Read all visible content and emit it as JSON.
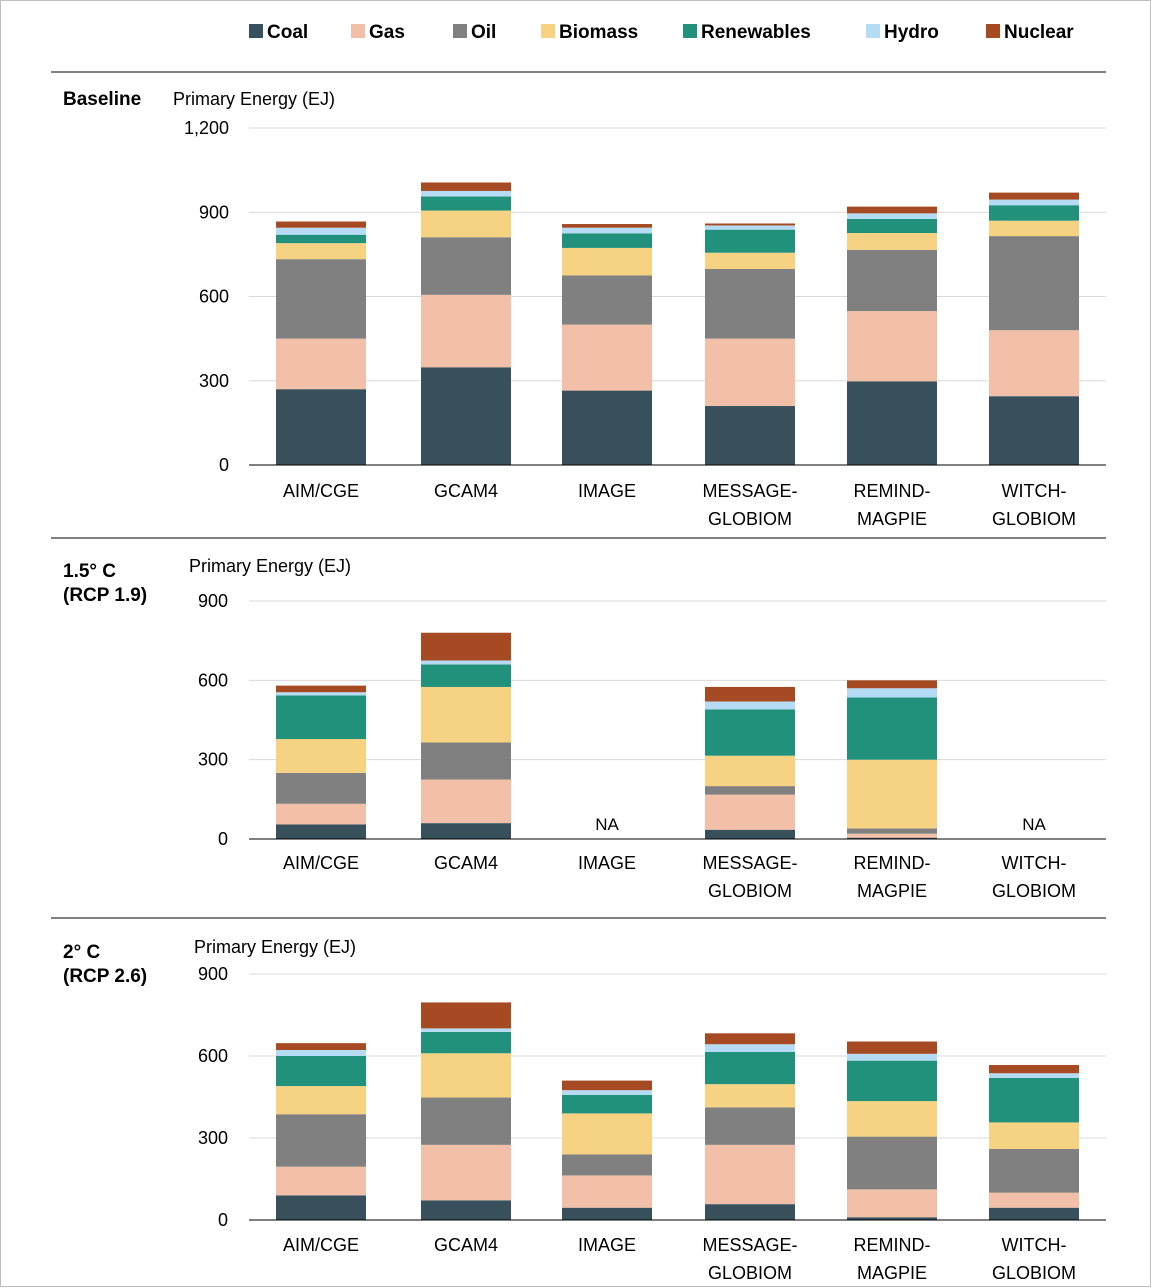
{
  "legend": [
    {
      "key": "coal",
      "label": "Coal",
      "color": "#37505c"
    },
    {
      "key": "gas",
      "label": "Gas",
      "color": "#f2bfa8"
    },
    {
      "key": "oil",
      "label": "Oil",
      "color": "#808080"
    },
    {
      "key": "biomass",
      "label": "Biomass",
      "color": "#f5d383"
    },
    {
      "key": "renewables",
      "label": "Renewables",
      "color": "#22917c"
    },
    {
      "key": "hydro",
      "label": "Hydro",
      "color": "#b6dcf5"
    },
    {
      "key": "nuclear",
      "label": "Nuclear",
      "color": "#a54a22"
    }
  ],
  "chart_data": [
    {
      "type": "bar",
      "stacked": true,
      "title": "Baseline",
      "ylabel": "Primary Energy (EJ)",
      "ylim": [
        0,
        1200
      ],
      "yticks": [
        "0",
        "300",
        "600",
        "900",
        "1,200"
      ],
      "grid": true,
      "legend_position": "top",
      "categories": [
        [
          "AIM/CGE"
        ],
        [
          "GCAM4"
        ],
        [
          "IMAGE"
        ],
        [
          "MESSAGE-",
          "GLOBIOM"
        ],
        [
          "REMIND-",
          "MAGPIE"
        ],
        [
          "WITCH-",
          "GLOBIOM"
        ]
      ],
      "na_labels": [
        "",
        "",
        "",
        "",
        "",
        ""
      ],
      "series": [
        {
          "name": "Coal",
          "values": [
            270,
            348,
            265,
            210,
            298,
            245
          ]
        },
        {
          "name": "Gas",
          "values": [
            180,
            258,
            235,
            240,
            250,
            235
          ]
        },
        {
          "name": "Oil",
          "values": [
            283,
            205,
            175,
            248,
            218,
            335
          ]
        },
        {
          "name": "Biomass",
          "values": [
            57,
            95,
            98,
            58,
            60,
            55
          ]
        },
        {
          "name": "Renewables",
          "values": [
            30,
            50,
            52,
            82,
            50,
            55
          ]
        },
        {
          "name": "Hydro",
          "values": [
            25,
            20,
            20,
            15,
            20,
            20
          ]
        },
        {
          "name": "Nuclear",
          "values": [
            22,
            30,
            13,
            7,
            24,
            25
          ]
        }
      ]
    },
    {
      "type": "bar",
      "stacked": true,
      "title": "1.5° C\n(RCP 1.9)",
      "ylabel": "Primary Energy (EJ)",
      "ylim": [
        0,
        900
      ],
      "yticks": [
        "0",
        "300",
        "600",
        "900"
      ],
      "grid": true,
      "categories": [
        [
          "AIM/CGE"
        ],
        [
          "GCAM4"
        ],
        [
          "IMAGE"
        ],
        [
          "MESSAGE-",
          "GLOBIOM"
        ],
        [
          "REMIND-",
          "MAGPIE"
        ],
        [
          "WITCH-",
          "GLOBIOM"
        ]
      ],
      "na_labels": [
        "",
        "",
        "NA",
        "",
        "",
        "NA"
      ],
      "series": [
        {
          "name": "Coal",
          "values": [
            55,
            60,
            0,
            35,
            5,
            0
          ]
        },
        {
          "name": "Gas",
          "values": [
            78,
            165,
            0,
            133,
            15,
            0
          ]
        },
        {
          "name": "Oil",
          "values": [
            117,
            140,
            0,
            32,
            20,
            0
          ]
        },
        {
          "name": "Biomass",
          "values": [
            128,
            210,
            0,
            115,
            260,
            0
          ]
        },
        {
          "name": "Renewables",
          "values": [
            165,
            85,
            0,
            175,
            235,
            0
          ]
        },
        {
          "name": "Hydro",
          "values": [
            12,
            15,
            0,
            30,
            35,
            0
          ]
        },
        {
          "name": "Nuclear",
          "values": [
            25,
            105,
            0,
            55,
            30,
            0
          ]
        }
      ]
    },
    {
      "type": "bar",
      "stacked": true,
      "title": "2° C\n(RCP 2.6)",
      "ylabel": "Primary Energy (EJ)",
      "ylim": [
        0,
        900
      ],
      "yticks": [
        "0",
        "300",
        "600",
        "900"
      ],
      "grid": true,
      "categories": [
        [
          "AIM/CGE"
        ],
        [
          "GCAM4"
        ],
        [
          "IMAGE"
        ],
        [
          "MESSAGE-",
          "GLOBIOM"
        ],
        [
          "REMIND-",
          "MAGPIE"
        ],
        [
          "WITCH-",
          "GLOBIOM"
        ]
      ],
      "na_labels": [
        "",
        "",
        "",
        "",
        "",
        ""
      ],
      "series": [
        {
          "name": "Coal",
          "values": [
            90,
            72,
            45,
            58,
            10,
            45
          ]
        },
        {
          "name": "Gas",
          "values": [
            105,
            203,
            118,
            217,
            102,
            55
          ]
        },
        {
          "name": "Oil",
          "values": [
            192,
            173,
            77,
            137,
            193,
            160
          ]
        },
        {
          "name": "Biomass",
          "values": [
            103,
            162,
            150,
            85,
            130,
            97
          ]
        },
        {
          "name": "Renewables",
          "values": [
            110,
            78,
            68,
            118,
            148,
            163
          ]
        },
        {
          "name": "Hydro",
          "values": [
            22,
            13,
            17,
            28,
            25,
            17
          ]
        },
        {
          "name": "Nuclear",
          "values": [
            25,
            95,
            35,
            40,
            45,
            30
          ]
        }
      ]
    }
  ]
}
